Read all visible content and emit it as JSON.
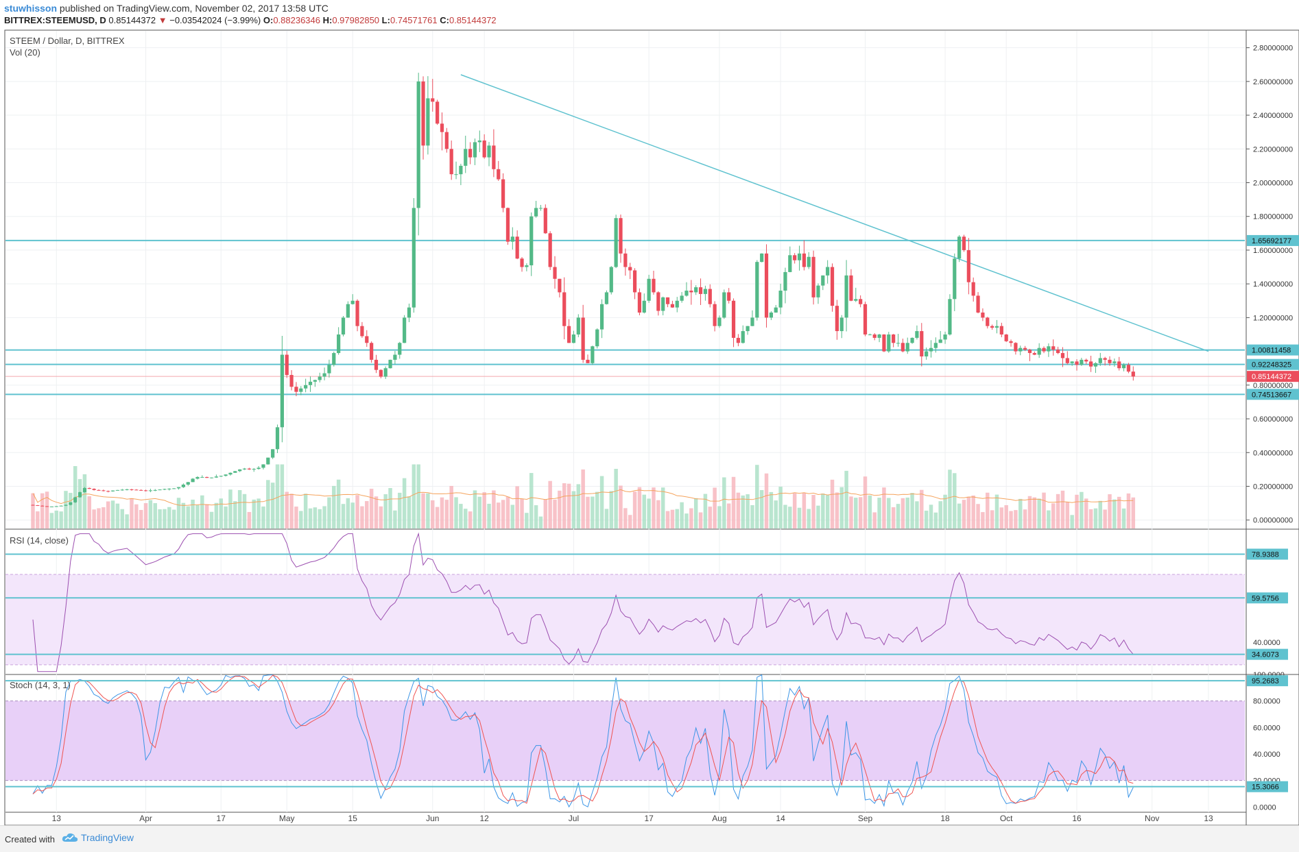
{
  "header": {
    "author": "stuwhisson",
    "published": "published on TradingView.com, November 02, 2017 13:58 UTC",
    "symbol": "BITTREX:STEEMUSD, D",
    "last": "0.85144372",
    "arrow": "▼",
    "change": "−0.03542024 (−3.99%)",
    "o_label": "O:",
    "o_val": "0.88236346",
    "h_label": "H:",
    "h_val": "0.97982850",
    "l_label": "L:",
    "l_val": "0.74571761",
    "c_label": "C:",
    "c_val": "0.85144372"
  },
  "footer": {
    "created": "Created with",
    "brand": "TradingView",
    "brand_icon": "tradingview-cloud-icon"
  },
  "colors": {
    "up": "#53b987",
    "down": "#eb4d5c",
    "hline": "#5fc2cf",
    "trend": "#5fc2cf",
    "rsi": "#9c4fb0",
    "stoch_k": "#3b95e6",
    "stoch_d": "#ef5350",
    "vol_ma": "#f5a35c"
  },
  "chart_data": [
    {
      "type": "candlestick",
      "title": "STEEM / Dollar, D, BITTREX",
      "volume_label": "Vol (20)",
      "x_tick_labels": [
        "13",
        "Apr",
        "17",
        "May",
        "15",
        "Jun",
        "12",
        "Jul",
        "17",
        "Aug",
        "14",
        "Sep",
        "18",
        "Oct",
        "16",
        "Nov",
        "13"
      ],
      "y_tick_labels": [
        "2.80000000",
        "2.60000000",
        "2.40000000",
        "2.20000000",
        "2.00000000",
        "1.80000000",
        "1.60000000",
        "1.40000000",
        "1.20000000",
        "0.80000000",
        "0.60000000",
        "0.40000000",
        "0.20000000",
        "0.00000000"
      ],
      "ylim": [
        -0.05,
        2.9
      ],
      "horizontal_levels": [
        {
          "label": "1.65692177",
          "value": 1.65692177
        },
        {
          "label": "1.00811458",
          "value": 1.00811458
        },
        {
          "label": "0.92248325",
          "value": 0.92248325
        },
        {
          "label": "0.74513667",
          "value": 0.74513667
        }
      ],
      "last_price_label": "0.85144372",
      "last_price": 0.85144372,
      "trendline": {
        "from": {
          "date": "2017-06-07",
          "y": 2.64
        },
        "to": {
          "date": "2017-11-13",
          "y": 1.0
        }
      },
      "close_series": {
        "start": "2017-03-08",
        "values": [
          0.088,
          0.085,
          0.082,
          0.08,
          0.08,
          0.082,
          0.085,
          0.09,
          0.105,
          0.135,
          0.165,
          0.19,
          0.185,
          0.178,
          0.176,
          0.172,
          0.17,
          0.175,
          0.178,
          0.18,
          0.182,
          0.18,
          0.178,
          0.176,
          0.174,
          0.176,
          0.178,
          0.181,
          0.184,
          0.186,
          0.188,
          0.195,
          0.21,
          0.225,
          0.245,
          0.255,
          0.255,
          0.25,
          0.252,
          0.258,
          0.262,
          0.27,
          0.28,
          0.29,
          0.3,
          0.305,
          0.3,
          0.303,
          0.31,
          0.33,
          0.37,
          0.42,
          0.55,
          0.98,
          0.86,
          0.79,
          0.76,
          0.78,
          0.8,
          0.82,
          0.83,
          0.85,
          0.87,
          0.92,
          0.99,
          1.1,
          1.2,
          1.28,
          1.3,
          1.15,
          1.09,
          1.05,
          0.95,
          0.89,
          0.85,
          0.9,
          0.95,
          0.98,
          1.05,
          1.2,
          1.26,
          1.85,
          2.6,
          2.22,
          2.5,
          2.48,
          2.35,
          2.3,
          2.2,
          2.05,
          2.05,
          2.1,
          2.2,
          2.15,
          2.24,
          2.25,
          2.15,
          2.22,
          2.08,
          2.02,
          1.85,
          1.65,
          1.68,
          1.55,
          1.5,
          1.51,
          1.8,
          1.85,
          1.85,
          1.7,
          1.5,
          1.43,
          1.35,
          1.15,
          1.05,
          1.1,
          1.2,
          0.95,
          0.93,
          1.03,
          1.13,
          1.28,
          1.35,
          1.5,
          1.79,
          1.58,
          1.5,
          1.48,
          1.35,
          1.23,
          1.3,
          1.43,
          1.35,
          1.24,
          1.32,
          1.28,
          1.26,
          1.3,
          1.33,
          1.36,
          1.35,
          1.38,
          1.34,
          1.37,
          1.28,
          1.15,
          1.2,
          1.35,
          1.3,
          1.08,
          1.05,
          1.12,
          1.15,
          1.2,
          1.53,
          1.58,
          1.2,
          1.23,
          1.26,
          1.36,
          1.47,
          1.57,
          1.54,
          1.58,
          1.5,
          1.56,
          1.32,
          1.39,
          1.45,
          1.5,
          1.27,
          1.12,
          1.2,
          1.45,
          1.3,
          1.31,
          1.28,
          1.1,
          1.1,
          1.08,
          1.1,
          1.0,
          1.1,
          1.05,
          1.05,
          1.0,
          1.05,
          1.08,
          1.12,
          0.97,
          1.0,
          1.02,
          1.05,
          1.07,
          1.1,
          1.31,
          1.55,
          1.68,
          1.6,
          1.41,
          1.33,
          1.23,
          1.2,
          1.15,
          1.14,
          1.15,
          1.1,
          1.06,
          1.05,
          1.0,
          1.02,
          1.01,
          0.99,
          0.98,
          1.02,
          1.0,
          1.03,
          1.01,
          0.99,
          0.96,
          0.93,
          0.94,
          0.92,
          0.95,
          0.94,
          0.91,
          0.93,
          0.96,
          0.95,
          0.93,
          0.94,
          0.9,
          0.92,
          0.88,
          0.851
        ]
      }
    },
    {
      "type": "line",
      "title": "RSI (14, close)",
      "y_tick_labels": [
        "40.0000"
      ],
      "level_labels": [
        {
          "label": "78.9388",
          "value": 78.9388
        },
        {
          "label": "59.5756",
          "value": 59.5756
        },
        {
          "label": "34.6073",
          "value": 34.6073
        }
      ],
      "band": [
        30,
        70
      ],
      "ylim": [
        26,
        90
      ]
    },
    {
      "type": "line",
      "title": "Stoch (14, 3, 1)",
      "y_tick_labels": [
        "100.0000",
        "80.0000",
        "60.0000",
        "40.0000",
        "20.0000",
        "0.0000"
      ],
      "level_labels": [
        {
          "label": "95.2683",
          "value": 95.2683
        },
        {
          "label": "15.3066",
          "value": 15.3066
        }
      ],
      "band": [
        20,
        80
      ],
      "ylim": [
        -4,
        100
      ]
    }
  ]
}
